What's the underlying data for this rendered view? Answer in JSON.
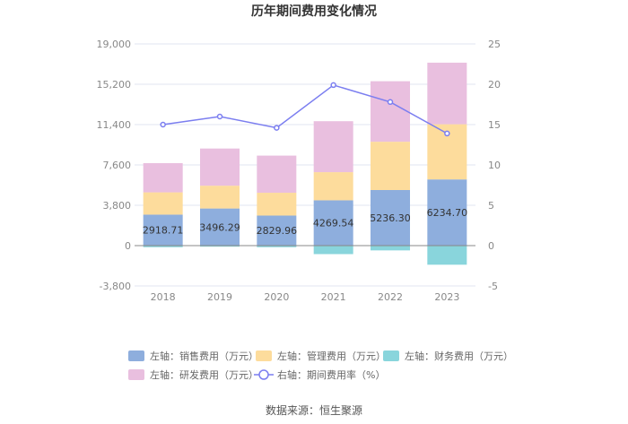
{
  "chart_data": {
    "type": "bar",
    "title": "历年期间费用变化情况",
    "categories": [
      "2018",
      "2019",
      "2020",
      "2021",
      "2022",
      "2023"
    ],
    "left_axis": {
      "ylim": [
        -3800,
        19000
      ],
      "ticks": [
        -3800,
        0,
        3800,
        7600,
        11400,
        15200,
        19000
      ],
      "tick_labels": [
        "-3,800",
        "0",
        "3,800",
        "7,600",
        "11,400",
        "15,200",
        "19,000"
      ]
    },
    "right_axis": {
      "ylim": [
        -5,
        25
      ],
      "ticks": [
        -5,
        0,
        5,
        10,
        15,
        20,
        25
      ],
      "tick_labels": [
        "-5",
        "0",
        "5",
        "10",
        "15",
        "20",
        "25"
      ]
    },
    "series": [
      {
        "name": "左轴：销售费用（万元）",
        "key": "sales",
        "kind": "bar",
        "axis": "left",
        "color": "#8eaedd",
        "values": [
          2918.71,
          3496.29,
          2829.96,
          4269.54,
          5236.3,
          6234.7
        ],
        "labels": [
          "2918.71",
          "3496.29",
          "2829.96",
          "4269.54",
          "5236.30",
          "6234.70"
        ]
      },
      {
        "name": "左轴：管理费用（万元）",
        "key": "admin",
        "kind": "bar",
        "axis": "left",
        "color": "#fddc9c",
        "values": [
          2100,
          2150,
          2150,
          2650,
          4550,
          5200
        ]
      },
      {
        "name": "左轴：财务费用（万元）",
        "key": "finance",
        "kind": "bar",
        "axis": "left",
        "color": "#89d5dc",
        "values": [
          -150,
          -100,
          -150,
          -800,
          -450,
          -1800
        ]
      },
      {
        "name": "左轴：研发费用（万元）",
        "key": "rd",
        "kind": "bar",
        "axis": "left",
        "color": "#e9bfdf",
        "values": [
          2750,
          3500,
          3500,
          4800,
          5700,
          5800
        ]
      },
      {
        "name": "右轴：期间费用率（%）",
        "key": "rate",
        "kind": "line",
        "axis": "right",
        "color": "#7b7ef0",
        "values": [
          15.0,
          16.0,
          14.6,
          19.9,
          17.8,
          13.9
        ]
      }
    ],
    "legend_position": "bottom",
    "source": "数据来源：恒生聚源"
  }
}
